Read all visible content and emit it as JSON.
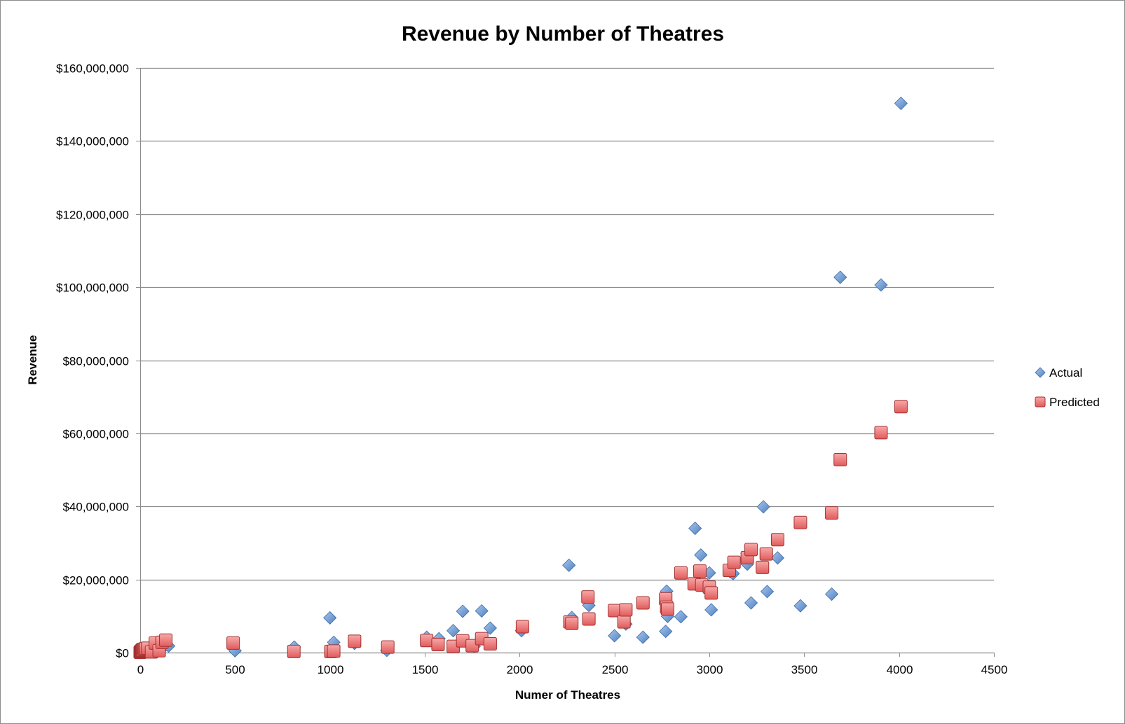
{
  "chart_data": {
    "type": "scatter",
    "title": "Revenue by Number of Theatres",
    "xlabel": "Numer of Theatres",
    "ylabel": "Revenue",
    "xlim": [
      0,
      4500
    ],
    "ylim": [
      0,
      160000000
    ],
    "x_ticks": [
      0,
      500,
      1000,
      1500,
      2000,
      2500,
      3000,
      3500,
      4000,
      4500
    ],
    "x_tick_labels": [
      "0",
      "500",
      "1000",
      "1500",
      "2000",
      "2500",
      "3000",
      "3500",
      "4000",
      "4500"
    ],
    "y_ticks": [
      0,
      20000000,
      40000000,
      60000000,
      80000000,
      100000000,
      120000000,
      140000000,
      160000000
    ],
    "y_tick_labels": [
      "$0",
      "$20,000,000",
      "$40,000,000",
      "$60,000,000",
      "$80,000,000",
      "$100,000,000",
      "$120,000,000",
      "$140,000,000",
      "$160,000,000"
    ],
    "grid": "horizontal",
    "legend_position": "right",
    "series": [
      {
        "name": "Actual",
        "marker": "diamond",
        "color": "#4f81bd",
        "points": [
          [
            0,
            0
          ],
          [
            1,
            100000
          ],
          [
            2,
            50000
          ],
          [
            3,
            200000
          ],
          [
            5,
            80000
          ],
          [
            6,
            400000
          ],
          [
            8,
            150000
          ],
          [
            10,
            300000
          ],
          [
            12,
            600000
          ],
          [
            15,
            200000
          ],
          [
            18,
            900000
          ],
          [
            20,
            400000
          ],
          [
            22,
            1200000
          ],
          [
            25,
            300000
          ],
          [
            30,
            800000
          ],
          [
            35,
            500000
          ],
          [
            40,
            1000000
          ],
          [
            50,
            700000
          ],
          [
            60,
            1200000
          ],
          [
            80,
            900000
          ],
          [
            100,
            1100000
          ],
          [
            120,
            1300000
          ],
          [
            150,
            1800000
          ],
          [
            500,
            500000
          ],
          [
            812,
            1500000
          ],
          [
            1000,
            9500000
          ],
          [
            1010,
            1000000
          ],
          [
            1020,
            2800000
          ],
          [
            1130,
            2500000
          ],
          [
            1300,
            600000
          ],
          [
            1510,
            4200000
          ],
          [
            1575,
            3800000
          ],
          [
            1650,
            6000000
          ],
          [
            1700,
            11300000
          ],
          [
            1760,
            1700000
          ],
          [
            1800,
            11400000
          ],
          [
            1845,
            6700000
          ],
          [
            2010,
            6000000
          ],
          [
            2260,
            23900000
          ],
          [
            2275,
            9600000
          ],
          [
            2365,
            12900000
          ],
          [
            2500,
            4600000
          ],
          [
            2560,
            7800000
          ],
          [
            2650,
            4200000
          ],
          [
            2770,
            5800000
          ],
          [
            2775,
            16800000
          ],
          [
            2780,
            9900000
          ],
          [
            2850,
            9800000
          ],
          [
            2925,
            34000000
          ],
          [
            2955,
            26700000
          ],
          [
            3000,
            21800000
          ],
          [
            3010,
            11700000
          ],
          [
            3110,
            22100000
          ],
          [
            3125,
            21600000
          ],
          [
            3200,
            24200000
          ],
          [
            3220,
            13600000
          ],
          [
            3285,
            39900000
          ],
          [
            3305,
            16700000
          ],
          [
            3360,
            25900000
          ],
          [
            3480,
            12800000
          ],
          [
            3645,
            16000000
          ],
          [
            3690,
            102700000
          ],
          [
            3905,
            100600000
          ],
          [
            4010,
            150300000
          ]
        ]
      },
      {
        "name": "Predicted",
        "marker": "square",
        "color": "#e15b5b",
        "points": [
          [
            0,
            100000
          ],
          [
            1,
            200000
          ],
          [
            3,
            300000
          ],
          [
            5,
            400000
          ],
          [
            8,
            500000
          ],
          [
            10,
            600000
          ],
          [
            12,
            800000
          ],
          [
            15,
            700000
          ],
          [
            20,
            900000
          ],
          [
            25,
            1000000
          ],
          [
            30,
            1100000
          ],
          [
            40,
            1200000
          ],
          [
            60,
            200000
          ],
          [
            80,
            2600000
          ],
          [
            100,
            500000
          ],
          [
            115,
            2800000
          ],
          [
            135,
            3400000
          ],
          [
            490,
            2600000
          ],
          [
            810,
            300000
          ],
          [
            1005,
            300000
          ],
          [
            1020,
            400000
          ],
          [
            1130,
            3100000
          ],
          [
            1305,
            1500000
          ],
          [
            1510,
            3300000
          ],
          [
            1570,
            2200000
          ],
          [
            1650,
            1700000
          ],
          [
            1700,
            3200000
          ],
          [
            1750,
            1900000
          ],
          [
            1800,
            3800000
          ],
          [
            1845,
            2400000
          ],
          [
            2015,
            7100000
          ],
          [
            2265,
            8400000
          ],
          [
            2275,
            8000000
          ],
          [
            2360,
            15200000
          ],
          [
            2365,
            9200000
          ],
          [
            2500,
            11500000
          ],
          [
            2550,
            8400000
          ],
          [
            2560,
            11700000
          ],
          [
            2650,
            13600000
          ],
          [
            2770,
            14700000
          ],
          [
            2775,
            12400000
          ],
          [
            2780,
            11900000
          ],
          [
            2850,
            21800000
          ],
          [
            2920,
            18800000
          ],
          [
            2950,
            22300000
          ],
          [
            2960,
            18500000
          ],
          [
            3000,
            17900000
          ],
          [
            3010,
            16300000
          ],
          [
            3105,
            22500000
          ],
          [
            3130,
            24700000
          ],
          [
            3200,
            26000000
          ],
          [
            3220,
            28200000
          ],
          [
            3280,
            23300000
          ],
          [
            3300,
            27000000
          ],
          [
            3360,
            30900000
          ],
          [
            3480,
            35600000
          ],
          [
            3645,
            38200000
          ],
          [
            3690,
            52800000
          ],
          [
            3905,
            60200000
          ],
          [
            4010,
            67300000
          ]
        ]
      }
    ]
  }
}
